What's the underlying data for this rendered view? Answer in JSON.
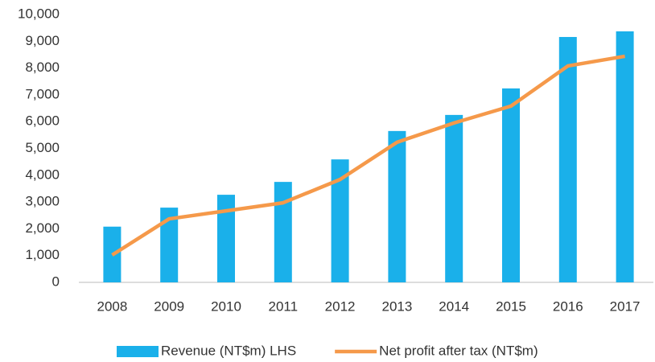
{
  "chart_data": {
    "type": "bar_line",
    "categories": [
      "2008",
      "2009",
      "2010",
      "2011",
      "2012",
      "2013",
      "2014",
      "2015",
      "2016",
      "2017"
    ],
    "series": [
      {
        "name": "Revenue (NT$m) LHS",
        "type": "bar",
        "color": "#1ab0ea",
        "values": [
          2080,
          2790,
          3270,
          3750,
          4590,
          5650,
          6250,
          7240,
          9160,
          9370
        ]
      },
      {
        "name": "Net profit after tax (NT$m)",
        "type": "line",
        "color": "#f5994a",
        "values": [
          1020,
          2370,
          2670,
          2970,
          3840,
          5230,
          5950,
          6580,
          8080,
          8440
        ]
      }
    ],
    "ylim": [
      0,
      10000
    ],
    "yticks": [
      0,
      {
        "value": 1000,
        "label": "1,000"
      },
      {
        "value": 2000,
        "label": "2,000"
      },
      {
        "value": 3000,
        "label": "3,000"
      },
      {
        "value": 4000,
        "label": "4,000"
      },
      {
        "value": 5000,
        "label": "5,000"
      },
      {
        "value": 6000,
        "label": "6,000"
      },
      {
        "value": 7000,
        "label": "7,000"
      },
      {
        "value": 8000,
        "label": "8,000"
      },
      {
        "value": 9000,
        "label": "9,000"
      },
      {
        "value": 10000,
        "label": "10,000"
      }
    ],
    "grid": false,
    "legend": "bottom"
  }
}
